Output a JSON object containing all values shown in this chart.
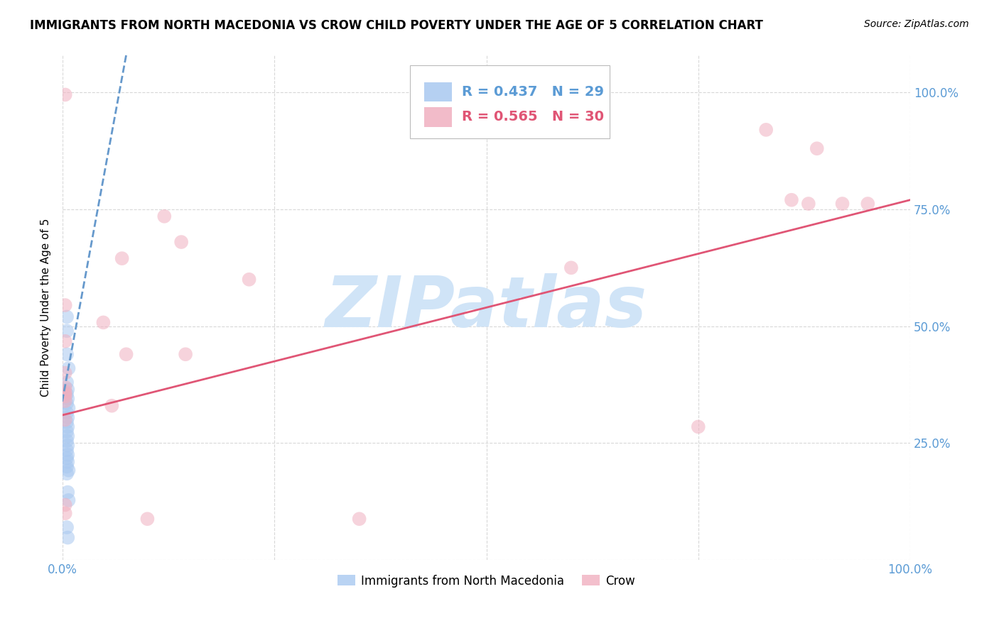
{
  "title": "IMMIGRANTS FROM NORTH MACEDONIA VS CROW CHILD POVERTY UNDER THE AGE OF 5 CORRELATION CHART",
  "source": "Source: ZipAtlas.com",
  "ylabel": "Child Poverty Under the Age of 5",
  "watermark": "ZIPatlas",
  "legend_blue_r": "R = 0.437",
  "legend_blue_n": "N = 29",
  "legend_pink_r": "R = 0.565",
  "legend_pink_n": "N = 30",
  "legend_blue_label": "Immigrants from North Macedonia",
  "legend_pink_label": "Crow",
  "blue_scatter": [
    [
      0.005,
      0.52
    ],
    [
      0.005,
      0.49
    ],
    [
      0.005,
      0.44
    ],
    [
      0.007,
      0.41
    ],
    [
      0.005,
      0.38
    ],
    [
      0.006,
      0.365
    ],
    [
      0.005,
      0.355
    ],
    [
      0.006,
      0.345
    ],
    [
      0.005,
      0.335
    ],
    [
      0.007,
      0.325
    ],
    [
      0.005,
      0.315
    ],
    [
      0.006,
      0.305
    ],
    [
      0.005,
      0.295
    ],
    [
      0.006,
      0.285
    ],
    [
      0.005,
      0.275
    ],
    [
      0.006,
      0.265
    ],
    [
      0.005,
      0.255
    ],
    [
      0.006,
      0.245
    ],
    [
      0.005,
      0.235
    ],
    [
      0.006,
      0.225
    ],
    [
      0.005,
      0.218
    ],
    [
      0.006,
      0.21
    ],
    [
      0.005,
      0.2
    ],
    [
      0.007,
      0.192
    ],
    [
      0.005,
      0.185
    ],
    [
      0.006,
      0.145
    ],
    [
      0.007,
      0.128
    ],
    [
      0.005,
      0.07
    ],
    [
      0.006,
      0.048
    ]
  ],
  "pink_scatter": [
    [
      0.003,
      0.995
    ],
    [
      0.12,
      0.735
    ],
    [
      0.14,
      0.68
    ],
    [
      0.07,
      0.645
    ],
    [
      0.22,
      0.6
    ],
    [
      0.86,
      0.77
    ],
    [
      0.88,
      0.762
    ],
    [
      0.92,
      0.762
    ],
    [
      0.95,
      0.762
    ],
    [
      0.89,
      0.88
    ],
    [
      0.83,
      0.92
    ],
    [
      0.6,
      0.625
    ],
    [
      0.003,
      0.545
    ],
    [
      0.048,
      0.508
    ],
    [
      0.003,
      0.468
    ],
    [
      0.075,
      0.44
    ],
    [
      0.145,
      0.44
    ],
    [
      0.003,
      0.4
    ],
    [
      0.003,
      0.37
    ],
    [
      0.003,
      0.36
    ],
    [
      0.003,
      0.35
    ],
    [
      0.003,
      0.34
    ],
    [
      0.058,
      0.33
    ],
    [
      0.003,
      0.3
    ],
    [
      0.75,
      0.285
    ],
    [
      0.003,
      0.118
    ],
    [
      0.003,
      0.1
    ],
    [
      0.35,
      0.088
    ],
    [
      0.1,
      0.088
    ],
    [
      0.003,
      0.355
    ]
  ],
  "blue_line_x": [
    -0.005,
    0.075
  ],
  "blue_line_y": [
    0.295,
    1.08
  ],
  "pink_line_x": [
    0.0,
    1.0
  ],
  "pink_line_y": [
    0.31,
    0.77
  ],
  "xlim": [
    0.0,
    1.0
  ],
  "ylim": [
    0.0,
    1.08
  ],
  "ytick_vals": [
    0.0,
    0.25,
    0.5,
    0.75,
    1.0
  ],
  "ytick_labels": [
    "",
    "25.0%",
    "50.0%",
    "75.0%",
    "100.0%"
  ],
  "xtick_vals": [
    0.0,
    0.25,
    0.5,
    0.75,
    1.0
  ],
  "xtick_labels_bottom": [
    "0.0%",
    "",
    "",
    "",
    "100.0%"
  ],
  "grid_color": "#d8d8d8",
  "blue_color": "#a8c8f0",
  "blue_line_color": "#6699cc",
  "pink_color": "#f0b0c0",
  "pink_line_color": "#e05575",
  "title_fontsize": 12,
  "source_fontsize": 10,
  "axis_label_fontsize": 11,
  "tick_fontsize": 12,
  "legend_fontsize": 14,
  "watermark_color": "#d0e4f7",
  "watermark_fontsize": 72,
  "scatter_size": 200,
  "scatter_alpha": 0.55,
  "tick_color": "#5b9bd5"
}
